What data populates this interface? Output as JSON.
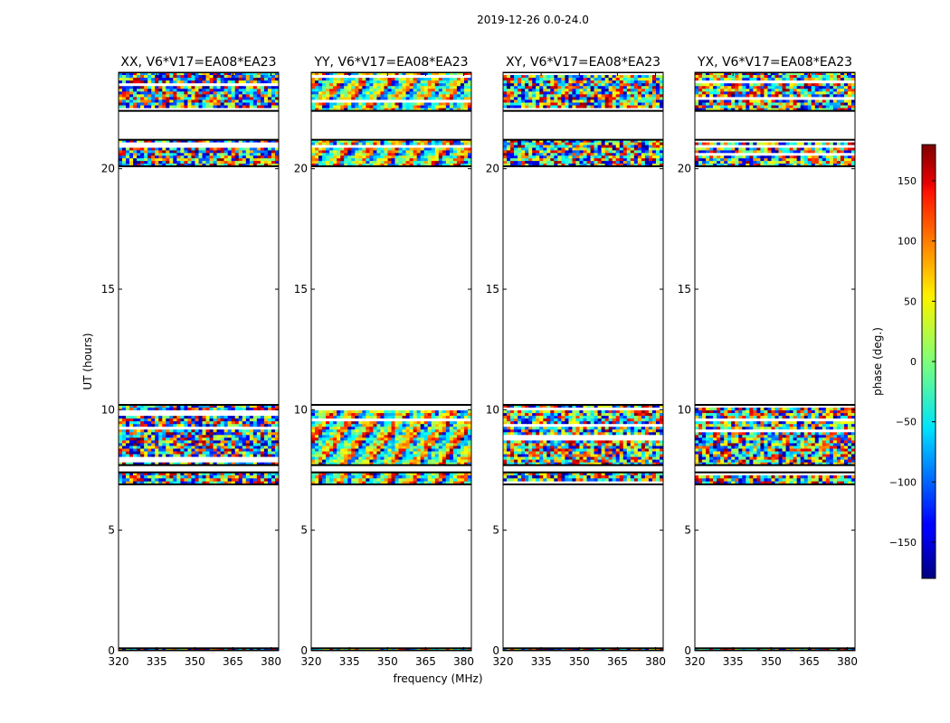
{
  "chart_data": {
    "type": "heatmap",
    "suptitle": "2019-12-26 0.0-24.0",
    "xlabel": "frequency (MHz)",
    "ylabel": "UT (hours)",
    "xlim": [
      320,
      383
    ],
    "ylim": [
      0,
      24
    ],
    "xticks": [
      320,
      335,
      350,
      365,
      380
    ],
    "yticks": [
      0,
      5,
      10,
      15,
      20
    ],
    "panels": [
      {
        "title": "XX, V6*V17=EA08*EA23",
        "bias": -110
      },
      {
        "title": "YY, V6*V17=EA08*EA23",
        "bias": 15
      },
      {
        "title": "XY, V6*V17=EA08*EA23",
        "bias": 0
      },
      {
        "title": "YX, V6*V17=EA08*EA23",
        "bias": 0
      }
    ],
    "data_bands_ut": [
      {
        "from": 0.0,
        "to": 0.1
      },
      {
        "from": 6.9,
        "to": 7.4
      },
      {
        "from": 7.7,
        "to": 10.2
      },
      {
        "from": 20.1,
        "to": 21.2
      },
      {
        "from": 22.4,
        "to": 24.0
      }
    ],
    "colorbar": {
      "label": "phase (deg.)",
      "range": [
        -180,
        180
      ],
      "ticks": [
        150,
        100,
        50,
        0,
        -50,
        -100,
        -150
      ],
      "tick_labels": [
        "150",
        "100",
        "50",
        "0",
        "−50",
        "−100",
        "−150"
      ],
      "colormap": "jet"
    }
  }
}
